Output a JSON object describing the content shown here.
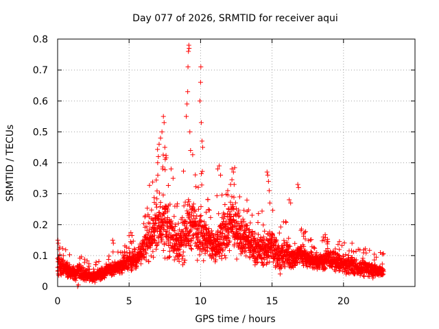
{
  "chart_data": {
    "type": "scatter",
    "title": "Day 077 of 2026, SRMTID for receiver aqui",
    "xlabel": "GPS time / hours",
    "ylabel": "SRMTID / TECUs",
    "xlim": [
      0,
      25
    ],
    "ylim": [
      0,
      0.8
    ],
    "x_ticks": [
      0,
      5,
      10,
      15,
      20
    ],
    "x_tick_labels": [
      "0",
      "5",
      "10",
      "15",
      "20"
    ],
    "y_ticks": [
      0,
      0.1,
      0.2,
      0.3,
      0.4,
      0.5,
      0.6,
      0.7,
      0.8
    ],
    "y_tick_labels": [
      "0",
      "0.1",
      "0.2",
      "0.3",
      "0.4",
      "0.5",
      "0.6",
      "0.7",
      "0.8"
    ],
    "grid": true,
    "marker": "+",
    "marker_color": "#ff0000",
    "series": [
      {
        "name": "SRMTID",
        "envelope": {
          "x": [
            0.0,
            0.5,
            1.0,
            1.5,
            2.0,
            2.5,
            3.0,
            3.5,
            4.0,
            4.5,
            5.0,
            5.5,
            6.0,
            6.5,
            7.0,
            7.5,
            8.0,
            8.5,
            9.0,
            9.5,
            10.0,
            10.5,
            11.0,
            11.5,
            12.0,
            12.5,
            13.0,
            13.5,
            14.0,
            14.5,
            15.0,
            15.5,
            16.0,
            16.5,
            17.0,
            17.5,
            18.0,
            18.5,
            19.0,
            19.5,
            20.0,
            20.5,
            21.0,
            21.5,
            22.0,
            22.5,
            22.8
          ],
          "center": [
            0.07,
            0.06,
            0.045,
            0.045,
            0.04,
            0.03,
            0.04,
            0.05,
            0.06,
            0.07,
            0.085,
            0.09,
            0.12,
            0.16,
            0.21,
            0.2,
            0.17,
            0.12,
            0.19,
            0.2,
            0.18,
            0.15,
            0.12,
            0.16,
            0.2,
            0.19,
            0.17,
            0.14,
            0.12,
            0.12,
            0.13,
            0.1,
            0.1,
            0.09,
            0.11,
            0.09,
            0.08,
            0.085,
            0.09,
            0.08,
            0.07,
            0.07,
            0.06,
            0.06,
            0.055,
            0.05,
            0.05
          ],
          "spread": [
            0.03,
            0.025,
            0.02,
            0.02,
            0.02,
            0.015,
            0.015,
            0.015,
            0.02,
            0.02,
            0.03,
            0.03,
            0.045,
            0.06,
            0.08,
            0.08,
            0.07,
            0.06,
            0.08,
            0.08,
            0.07,
            0.06,
            0.05,
            0.07,
            0.08,
            0.07,
            0.06,
            0.05,
            0.04,
            0.045,
            0.05,
            0.04,
            0.04,
            0.03,
            0.035,
            0.025,
            0.025,
            0.025,
            0.03,
            0.025,
            0.025,
            0.025,
            0.02,
            0.025,
            0.02,
            0.02,
            0.02
          ]
        },
        "points": [
          [
            0.02,
            0.15
          ],
          [
            0.05,
            0.14
          ],
          [
            0.1,
            0.12
          ],
          [
            0.4,
            0.1
          ],
          [
            1.4,
            0.0
          ],
          [
            1.45,
            0.005
          ],
          [
            3.85,
            0.15
          ],
          [
            3.9,
            0.14
          ],
          [
            7.0,
            0.4
          ],
          [
            7.05,
            0.42
          ],
          [
            7.1,
            0.46
          ],
          [
            7.2,
            0.48
          ],
          [
            7.3,
            0.5
          ],
          [
            7.4,
            0.55
          ],
          [
            7.45,
            0.53
          ],
          [
            7.5,
            0.45
          ],
          [
            7.35,
            0.38
          ],
          [
            9.0,
            0.55
          ],
          [
            9.05,
            0.59
          ],
          [
            9.1,
            0.63
          ],
          [
            9.12,
            0.71
          ],
          [
            9.15,
            0.76
          ],
          [
            9.18,
            0.78
          ],
          [
            9.2,
            0.77
          ],
          [
            9.25,
            0.5
          ],
          [
            9.3,
            0.44
          ],
          [
            9.95,
            0.6
          ],
          [
            10.0,
            0.66
          ],
          [
            10.02,
            0.71
          ],
          [
            10.05,
            0.53
          ],
          [
            10.1,
            0.47
          ],
          [
            10.15,
            0.45
          ],
          [
            11.2,
            0.38
          ],
          [
            11.3,
            0.39
          ],
          [
            11.4,
            0.36
          ],
          [
            11.9,
            0.31
          ],
          [
            12.1,
            0.33
          ],
          [
            12.2,
            0.38
          ],
          [
            12.3,
            0.37
          ],
          [
            12.35,
            0.33
          ],
          [
            14.65,
            0.37
          ],
          [
            14.7,
            0.36
          ],
          [
            14.75,
            0.34
          ],
          [
            14.8,
            0.31
          ],
          [
            14.85,
            0.27
          ],
          [
            16.2,
            0.28
          ],
          [
            16.3,
            0.27
          ],
          [
            16.8,
            0.33
          ],
          [
            16.85,
            0.32
          ],
          [
            17.2,
            0.17
          ]
        ]
      }
    ]
  }
}
